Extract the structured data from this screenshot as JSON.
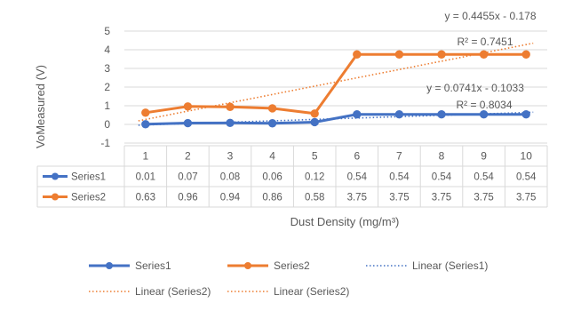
{
  "chart_data": {
    "type": "line",
    "categories": [
      "1",
      "2",
      "3",
      "4",
      "5",
      "6",
      "7",
      "8",
      "9",
      "10"
    ],
    "series": [
      {
        "name": "Series1",
        "values": [
          0.01,
          0.07,
          0.08,
          0.06,
          0.12,
          0.54,
          0.54,
          0.54,
          0.54,
          0.54
        ],
        "color": "#4472C4"
      },
      {
        "name": "Series2",
        "values": [
          0.63,
          0.96,
          0.94,
          0.86,
          0.58,
          3.75,
          3.75,
          3.75,
          3.75,
          3.75
        ],
        "color": "#ED7D31"
      }
    ],
    "table_values": [
      [
        "0.01",
        "0.07",
        "0.08",
        "0.06",
        "0.12",
        "0.54",
        "0.54",
        "0.54",
        "0.54",
        "0.54"
      ],
      [
        "0.63",
        "0.96",
        "0.94",
        "0.86",
        "0.58",
        "3.75",
        "3.75",
        "3.75",
        "3.75",
        "3.75"
      ]
    ],
    "trendlines": [
      {
        "label": "Linear (Series1)",
        "slope": 0.0741,
        "intercept": -0.1033,
        "color": "#4472C4"
      },
      {
        "label": "Linear (Series2)",
        "slope": 0.4455,
        "intercept": -0.178,
        "color": "#ED7D31"
      }
    ],
    "annotations": [
      {
        "text": "y = 0.4455x - 0.178",
        "series": "Series2"
      },
      {
        "text": "R² = 0.7451",
        "series": "Series2"
      },
      {
        "text": "y = 0.0741x - 0.1033",
        "series": "Series1"
      },
      {
        "text": "R² = 0.8034",
        "series": "Series1"
      }
    ],
    "xlabel": "Dust Density (mg/m³)",
    "ylabel": "VoMeasured (V)",
    "yticks": [
      "-1",
      "0",
      "1",
      "2",
      "3",
      "4",
      "5"
    ],
    "ylim": [
      -1,
      5
    ],
    "grid": true,
    "data_table": true,
    "legend": {
      "placement": "bottom",
      "entries": [
        "Series1",
        "Series2",
        "Linear (Series1)",
        "Linear (Series2)",
        "Linear (Series2)"
      ]
    }
  }
}
